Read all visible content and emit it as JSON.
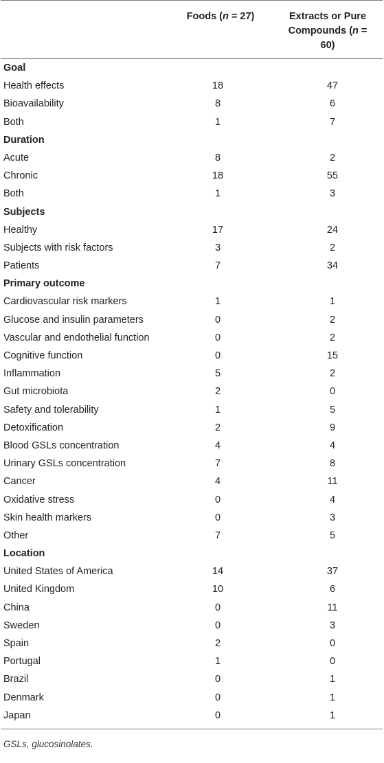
{
  "header": {
    "foods_prefix": "Foods (",
    "foods_n": "n",
    "foods_suffix": " = 27)",
    "extracts_line1": "Extracts or Pure",
    "extracts_line2_prefix": "Compounds (",
    "extracts_n": "n",
    "extracts_line2_suffix": " =",
    "extracts_line3": "60)"
  },
  "rows": [
    {
      "type": "section",
      "label": "Goal",
      "foods": "",
      "extracts": ""
    },
    {
      "type": "data",
      "label": "Health effects",
      "foods": "18",
      "extracts": "47"
    },
    {
      "type": "data",
      "label": "Bioavailability",
      "foods": "8",
      "extracts": "6"
    },
    {
      "type": "data",
      "label": "Both",
      "foods": "1",
      "extracts": "7"
    },
    {
      "type": "section",
      "label": "Duration",
      "foods": "",
      "extracts": ""
    },
    {
      "type": "data",
      "label": "Acute",
      "foods": "8",
      "extracts": "2"
    },
    {
      "type": "data",
      "label": "Chronic",
      "foods": "18",
      "extracts": "55"
    },
    {
      "type": "data",
      "label": "Both",
      "foods": "1",
      "extracts": "3"
    },
    {
      "type": "section",
      "label": "Subjects",
      "foods": "",
      "extracts": ""
    },
    {
      "type": "data",
      "label": "Healthy",
      "foods": "17",
      "extracts": "24"
    },
    {
      "type": "data",
      "label": "Subjects with risk factors",
      "foods": "3",
      "extracts": "2"
    },
    {
      "type": "data",
      "label": "Patients",
      "foods": "7",
      "extracts": "34"
    },
    {
      "type": "section",
      "label": "Primary outcome",
      "foods": "",
      "extracts": ""
    },
    {
      "type": "data",
      "label": "Cardiovascular risk markers",
      "foods": "1",
      "extracts": "1"
    },
    {
      "type": "data",
      "label": "Glucose and insulin parameters",
      "foods": "0",
      "extracts": "2"
    },
    {
      "type": "data",
      "label": "Vascular and endothelial function",
      "foods": "0",
      "extracts": "2"
    },
    {
      "type": "data",
      "label": "Cognitive function",
      "foods": "0",
      "extracts": "15"
    },
    {
      "type": "data",
      "label": "Inflammation",
      "foods": "5",
      "extracts": "2"
    },
    {
      "type": "data",
      "label": "Gut microbiota",
      "foods": "2",
      "extracts": "0"
    },
    {
      "type": "data",
      "label": "Safety and tolerability",
      "foods": "1",
      "extracts": "5"
    },
    {
      "type": "data",
      "label": "Detoxification",
      "foods": "2",
      "extracts": "9"
    },
    {
      "type": "data",
      "label": "Blood GSLs concentration",
      "foods": "4",
      "extracts": "4"
    },
    {
      "type": "data",
      "label": "Urinary GSLs concentration",
      "foods": "7",
      "extracts": "8"
    },
    {
      "type": "data",
      "label": "Cancer",
      "foods": "4",
      "extracts": "11"
    },
    {
      "type": "data",
      "label": "Oxidative stress",
      "foods": "0",
      "extracts": "4"
    },
    {
      "type": "data",
      "label": "Skin health markers",
      "foods": "0",
      "extracts": "3"
    },
    {
      "type": "data",
      "label": "Other",
      "foods": "7",
      "extracts": "5"
    },
    {
      "type": "section",
      "label": "Location",
      "foods": "",
      "extracts": ""
    },
    {
      "type": "data",
      "label": "United States of America",
      "foods": "14",
      "extracts": "37"
    },
    {
      "type": "data",
      "label": "United Kingdom",
      "foods": "10",
      "extracts": "6"
    },
    {
      "type": "data",
      "label": "China",
      "foods": "0",
      "extracts": "11"
    },
    {
      "type": "data",
      "label": "Sweden",
      "foods": "0",
      "extracts": "3"
    },
    {
      "type": "data",
      "label": "Spain",
      "foods": "2",
      "extracts": "0"
    },
    {
      "type": "data",
      "label": "Portugal",
      "foods": "1",
      "extracts": "0"
    },
    {
      "type": "data",
      "label": "Brazil",
      "foods": "0",
      "extracts": "1"
    },
    {
      "type": "data",
      "label": "Denmark",
      "foods": "0",
      "extracts": "1"
    },
    {
      "type": "data",
      "label": "Japan",
      "foods": "0",
      "extracts": "1"
    }
  ],
  "footnote": "GSLs, glucosinolates."
}
